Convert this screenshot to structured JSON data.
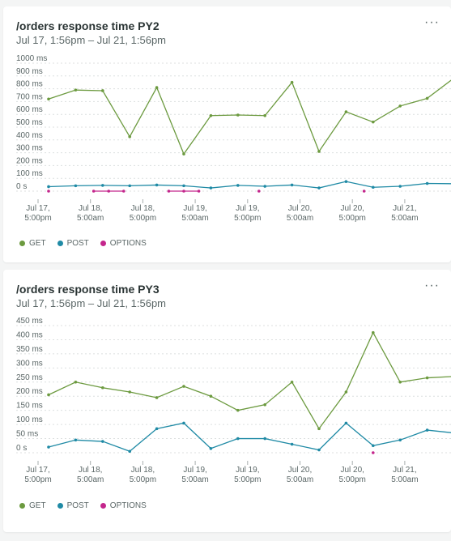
{
  "charts": [
    {
      "title": "/orders response time PY2",
      "subtitle": "Jul 17, 1:56pm – Jul 21, 1:56pm",
      "menu_label": "···",
      "legend": [
        {
          "label": "GET",
          "color": "#6c9a3f"
        },
        {
          "label": "POST",
          "color": "#1f8aa5"
        },
        {
          "label": "OPTIONS",
          "color": "#c4268c"
        }
      ]
    },
    {
      "title": "/orders response time PY3",
      "subtitle": "Jul 17, 1:56pm – Jul 21, 1:56pm",
      "menu_label": "···",
      "legend": [
        {
          "label": "GET",
          "color": "#6c9a3f"
        },
        {
          "label": "POST",
          "color": "#1f8aa5"
        },
        {
          "label": "OPTIONS",
          "color": "#c4268c"
        }
      ]
    }
  ],
  "chart_data": [
    {
      "type": "line",
      "title": "/orders response time PY2",
      "y_ticks": [
        "1000 ms",
        "900 ms",
        "800 ms",
        "700 ms",
        "600 ms",
        "500 ms",
        "400 ms",
        "300 ms",
        "200 ms",
        "100 ms",
        "0 s"
      ],
      "ylim": [
        0,
        1000
      ],
      "x_ticks": [
        [
          "Jul 17,",
          "5:00pm"
        ],
        [
          "Jul 18,",
          "5:00am"
        ],
        [
          "Jul 18,",
          "5:00pm"
        ],
        [
          "Jul 19,",
          "5:00am"
        ],
        [
          "Jul 19,",
          "5:00pm"
        ],
        [
          "Jul 20,",
          "5:00am"
        ],
        [
          "Jul 20,",
          "5:00pm"
        ],
        [
          "Jul 21,",
          "5:00am"
        ]
      ],
      "grid": true,
      "series": [
        {
          "name": "GET",
          "color": "#6c9a3f",
          "values": [
            720,
            790,
            785,
            425,
            810,
            290,
            590,
            595,
            590,
            850,
            310,
            620,
            540,
            665,
            725,
            885
          ]
        },
        {
          "name": "POST",
          "color": "#1f8aa5",
          "values": [
            35,
            42,
            45,
            42,
            48,
            42,
            25,
            45,
            38,
            48,
            25,
            75,
            30,
            38,
            60,
            58
          ]
        },
        {
          "name": "OPTIONS",
          "color": "#c4268c",
          "values": [
            0,
            null,
            null,
            0,
            0,
            0,
            null,
            null,
            0,
            0,
            0,
            null,
            null,
            null,
            0,
            null,
            null,
            null,
            null,
            null,
            null,
            0,
            null,
            null,
            null,
            null,
            null,
            0
          ]
        }
      ]
    },
    {
      "type": "line",
      "title": "/orders response time PY3",
      "y_ticks": [
        "450 ms",
        "400 ms",
        "350 ms",
        "300 ms",
        "250 ms",
        "200 ms",
        "150 ms",
        "100 ms",
        "50 ms",
        "0 s"
      ],
      "ylim": [
        0,
        450
      ],
      "x_ticks": [
        [
          "Jul 17,",
          "5:00pm"
        ],
        [
          "Jul 18,",
          "5:00am"
        ],
        [
          "Jul 18,",
          "5:00pm"
        ],
        [
          "Jul 19,",
          "5:00am"
        ],
        [
          "Jul 19,",
          "5:00pm"
        ],
        [
          "Jul 20,",
          "5:00am"
        ],
        [
          "Jul 20,",
          "5:00pm"
        ],
        [
          "Jul 21,",
          "5:00am"
        ]
      ],
      "grid": true,
      "series": [
        {
          "name": "GET",
          "color": "#6c9a3f",
          "values": [
            205,
            250,
            230,
            215,
            195,
            235,
            200,
            150,
            170,
            250,
            85,
            215,
            425,
            250,
            265,
            270
          ]
        },
        {
          "name": "POST",
          "color": "#1f8aa5",
          "values": [
            20,
            45,
            40,
            5,
            85,
            105,
            15,
            50,
            50,
            30,
            10,
            105,
            25,
            45,
            80,
            70
          ]
        },
        {
          "name": "OPTIONS",
          "color": "#c4268c",
          "values": [
            null,
            null,
            null,
            null,
            null,
            null,
            null,
            null,
            null,
            null,
            null,
            null,
            0,
            null,
            null,
            null
          ]
        }
      ]
    }
  ]
}
